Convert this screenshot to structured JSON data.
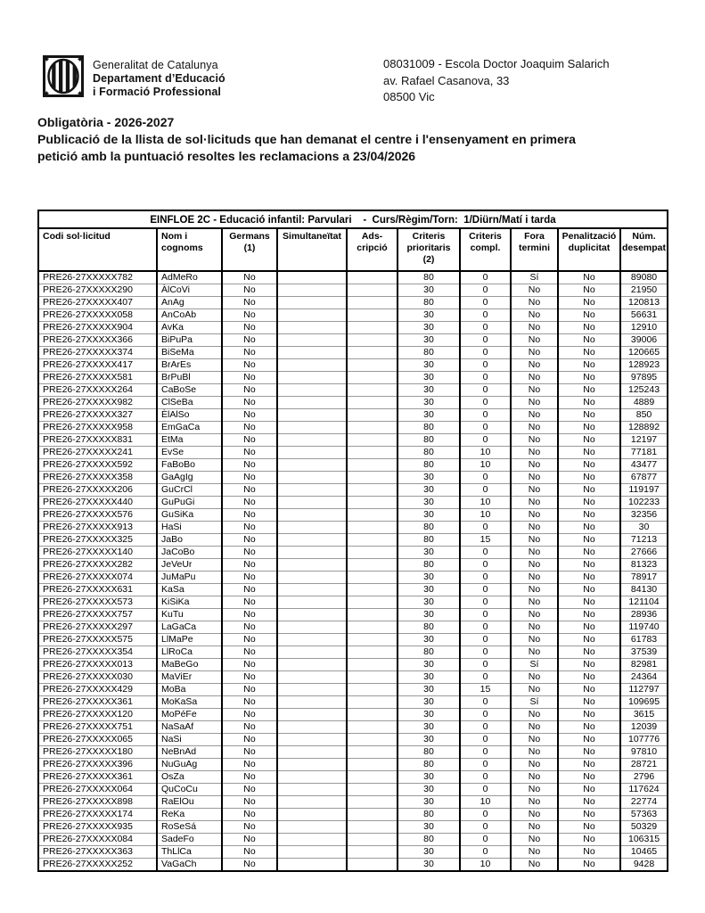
{
  "brand": {
    "line1": "Generalitat de Catalunya",
    "line2": "Departament d’Educació",
    "line3": "i Formació Professional",
    "logo_icon": "generalitat-senyera-seal"
  },
  "center": {
    "line1": "08031009 - Escola Doctor Joaquim Salarich",
    "line2": "av. Rafael Casanova, 33",
    "line3": "08500 Vic"
  },
  "titles": {
    "line1": "Obligatòria - 2026-2027",
    "subtitle": "Publicació de la llista de sol·licituds que han demanat el centre i l'ensenyament en primera\npetició amb la puntuació resoltes les reclamacions a 23/04/2026"
  },
  "table": {
    "caption": "EINFLOE 2C - Educació infantil: Parvulari    -  Curs/Règim/Torn:  1/Diürn/Matí i tarda",
    "column_keys": [
      "codi",
      "nom",
      "germans",
      "simultaneitat",
      "adscripcio",
      "criteris-prioritaris",
      "criteris-compl",
      "fora-termini",
      "penalitzacio-duplicitat",
      "num-desempat"
    ],
    "columns": [
      {
        "key": "codi",
        "label": "Codi sol·licitud"
      },
      {
        "key": "nom",
        "label": "Nom i\ncognoms"
      },
      {
        "key": "germans",
        "label": "Germans\n(1)"
      },
      {
        "key": "simultaneitat",
        "label": "Simultaneïtat"
      },
      {
        "key": "adscripcio",
        "label": "Ads-\ncripció"
      },
      {
        "key": "criteris-prioritaris",
        "label": "Criteris\nprioritaris\n(2)"
      },
      {
        "key": "criteris-compl",
        "label": "Criteris\ncompl."
      },
      {
        "key": "fora-termini",
        "label": "Fora\ntermini"
      },
      {
        "key": "penalitzacio-duplicitat",
        "label": "Penalització\nduplicitat"
      },
      {
        "key": "num-desempat",
        "label": "Núm.\ndesempat"
      }
    ],
    "rows": [
      [
        "PRE26-27XXXXX782",
        "AdMeRo",
        "No",
        "",
        "",
        "80",
        "0",
        "Sí",
        "No",
        "89080"
      ],
      [
        "PRE26-27XXXXX290",
        "ÀlCoVi",
        "No",
        "",
        "",
        "30",
        "0",
        "No",
        "No",
        "21950"
      ],
      [
        "PRE26-27XXXXX407",
        "AnAg",
        "No",
        "",
        "",
        "80",
        "0",
        "No",
        "No",
        "120813"
      ],
      [
        "PRE26-27XXXXX058",
        "AnCoAb",
        "No",
        "",
        "",
        "30",
        "0",
        "No",
        "No",
        "56631"
      ],
      [
        "PRE26-27XXXXX904",
        "AvKa",
        "No",
        "",
        "",
        "30",
        "0",
        "No",
        "No",
        "12910"
      ],
      [
        "PRE26-27XXXXX366",
        "BiPuPa",
        "No",
        "",
        "",
        "30",
        "0",
        "No",
        "No",
        "39006"
      ],
      [
        "PRE26-27XXXXX374",
        "BiSeMa",
        "No",
        "",
        "",
        "80",
        "0",
        "No",
        "No",
        "120665"
      ],
      [
        "PRE26-27XXXXX417",
        "BrArEs",
        "No",
        "",
        "",
        "30",
        "0",
        "No",
        "No",
        "128923"
      ],
      [
        "PRE26-27XXXXX581",
        "BrPuBl",
        "No",
        "",
        "",
        "30",
        "0",
        "No",
        "No",
        "97895"
      ],
      [
        "PRE26-27XXXXX264",
        "CaBoSe",
        "No",
        "",
        "",
        "30",
        "0",
        "No",
        "No",
        "125243"
      ],
      [
        "PRE26-27XXXXX982",
        "ClSeBa",
        "No",
        "",
        "",
        "30",
        "0",
        "No",
        "No",
        "4889"
      ],
      [
        "PRE26-27XXXXX327",
        "ÈlAlSo",
        "No",
        "",
        "",
        "30",
        "0",
        "No",
        "No",
        "850"
      ],
      [
        "PRE26-27XXXXX958",
        "EmGaCa",
        "No",
        "",
        "",
        "80",
        "0",
        "No",
        "No",
        "128892"
      ],
      [
        "PRE26-27XXXXX831",
        "EtMa",
        "No",
        "",
        "",
        "80",
        "0",
        "No",
        "No",
        "12197"
      ],
      [
        "PRE26-27XXXXX241",
        "EvSe",
        "No",
        "",
        "",
        "80",
        "10",
        "No",
        "No",
        "77181"
      ],
      [
        "PRE26-27XXXXX592",
        "FaBoBo",
        "No",
        "",
        "",
        "80",
        "10",
        "No",
        "No",
        "43477"
      ],
      [
        "PRE26-27XXXXX358",
        "GaAgIg",
        "No",
        "",
        "",
        "30",
        "0",
        "No",
        "No",
        "67877"
      ],
      [
        "PRE26-27XXXXX206",
        "GuCrCl",
        "No",
        "",
        "",
        "30",
        "0",
        "No",
        "No",
        "119197"
      ],
      [
        "PRE26-27XXXXX440",
        "GuPuGi",
        "No",
        "",
        "",
        "30",
        "10",
        "No",
        "No",
        "102233"
      ],
      [
        "PRE26-27XXXXX576",
        "GuSiKa",
        "No",
        "",
        "",
        "30",
        "10",
        "No",
        "No",
        "32356"
      ],
      [
        "PRE26-27XXXXX913",
        "HaSi",
        "No",
        "",
        "",
        "80",
        "0",
        "No",
        "No",
        "30"
      ],
      [
        "PRE26-27XXXXX325",
        "JaBo",
        "No",
        "",
        "",
        "80",
        "15",
        "No",
        "No",
        "71213"
      ],
      [
        "PRE26-27XXXXX140",
        "JaCoBo",
        "No",
        "",
        "",
        "30",
        "0",
        "No",
        "No",
        "27666"
      ],
      [
        "PRE26-27XXXXX282",
        "JeVeUr",
        "No",
        "",
        "",
        "80",
        "0",
        "No",
        "No",
        "81323"
      ],
      [
        "PRE26-27XXXXX074",
        "JuMaPu",
        "No",
        "",
        "",
        "30",
        "0",
        "No",
        "No",
        "78917"
      ],
      [
        "PRE26-27XXXXX631",
        "KaSa",
        "No",
        "",
        "",
        "30",
        "0",
        "No",
        "No",
        "84130"
      ],
      [
        "PRE26-27XXXXX573",
        "KiSiKa",
        "No",
        "",
        "",
        "30",
        "0",
        "No",
        "No",
        "121104"
      ],
      [
        "PRE26-27XXXXX757",
        "KuTu",
        "No",
        "",
        "",
        "30",
        "0",
        "No",
        "No",
        "28936"
      ],
      [
        "PRE26-27XXXXX297",
        "LaGaCa",
        "No",
        "",
        "",
        "80",
        "0",
        "No",
        "No",
        "119740"
      ],
      [
        "PRE26-27XXXXX575",
        "LlMaPe",
        "No",
        "",
        "",
        "30",
        "0",
        "No",
        "No",
        "61783"
      ],
      [
        "PRE26-27XXXXX354",
        "LlRoCa",
        "No",
        "",
        "",
        "80",
        "0",
        "No",
        "No",
        "37539"
      ],
      [
        "PRE26-27XXXXX013",
        "MaBeGo",
        "No",
        "",
        "",
        "30",
        "0",
        "Sí",
        "No",
        "82981"
      ],
      [
        "PRE26-27XXXXX030",
        "MaViEr",
        "No",
        "",
        "",
        "30",
        "0",
        "No",
        "No",
        "24364"
      ],
      [
        "PRE26-27XXXXX429",
        "MoBa",
        "No",
        "",
        "",
        "30",
        "15",
        "No",
        "No",
        "112797"
      ],
      [
        "PRE26-27XXXXX361",
        "MoKaSa",
        "No",
        "",
        "",
        "30",
        "0",
        "Sí",
        "No",
        "109695"
      ],
      [
        "PRE26-27XXXXX120",
        "MoPéFe",
        "No",
        "",
        "",
        "30",
        "0",
        "No",
        "No",
        "3615"
      ],
      [
        "PRE26-27XXXXX751",
        "NaSaAf",
        "No",
        "",
        "",
        "30",
        "0",
        "No",
        "No",
        "12039"
      ],
      [
        "PRE26-27XXXXX065",
        "NaSi",
        "No",
        "",
        "",
        "30",
        "0",
        "No",
        "No",
        "107776"
      ],
      [
        "PRE26-27XXXXX180",
        "NeBnAd",
        "No",
        "",
        "",
        "80",
        "0",
        "No",
        "No",
        "97810"
      ],
      [
        "PRE26-27XXXXX396",
        "NuGuAg",
        "No",
        "",
        "",
        "80",
        "0",
        "No",
        "No",
        "28721"
      ],
      [
        "PRE26-27XXXXX361",
        "OsZa",
        "No",
        "",
        "",
        "30",
        "0",
        "No",
        "No",
        "2796"
      ],
      [
        "PRE26-27XXXXX064",
        "QuCoCu",
        "No",
        "",
        "",
        "30",
        "0",
        "No",
        "No",
        "117624"
      ],
      [
        "PRE26-27XXXXX898",
        "RaElOu",
        "No",
        "",
        "",
        "30",
        "10",
        "No",
        "No",
        "22774"
      ],
      [
        "PRE26-27XXXXX174",
        "ReKa",
        "No",
        "",
        "",
        "80",
        "0",
        "No",
        "No",
        "57363"
      ],
      [
        "PRE26-27XXXXX935",
        "RoSeSá",
        "No",
        "",
        "",
        "30",
        "0",
        "No",
        "No",
        "50329"
      ],
      [
        "PRE26-27XXXXX084",
        "SadeFo",
        "No",
        "",
        "",
        "80",
        "0",
        "No",
        "No",
        "106315"
      ],
      [
        "PRE26-27XXXXX363",
        "ThLlCa",
        "No",
        "",
        "",
        "30",
        "0",
        "No",
        "No",
        "10465"
      ],
      [
        "PRE26-27XXXXX252",
        "VaGaCh",
        "No",
        "",
        "",
        "30",
        "10",
        "No",
        "No",
        "9428"
      ]
    ]
  }
}
